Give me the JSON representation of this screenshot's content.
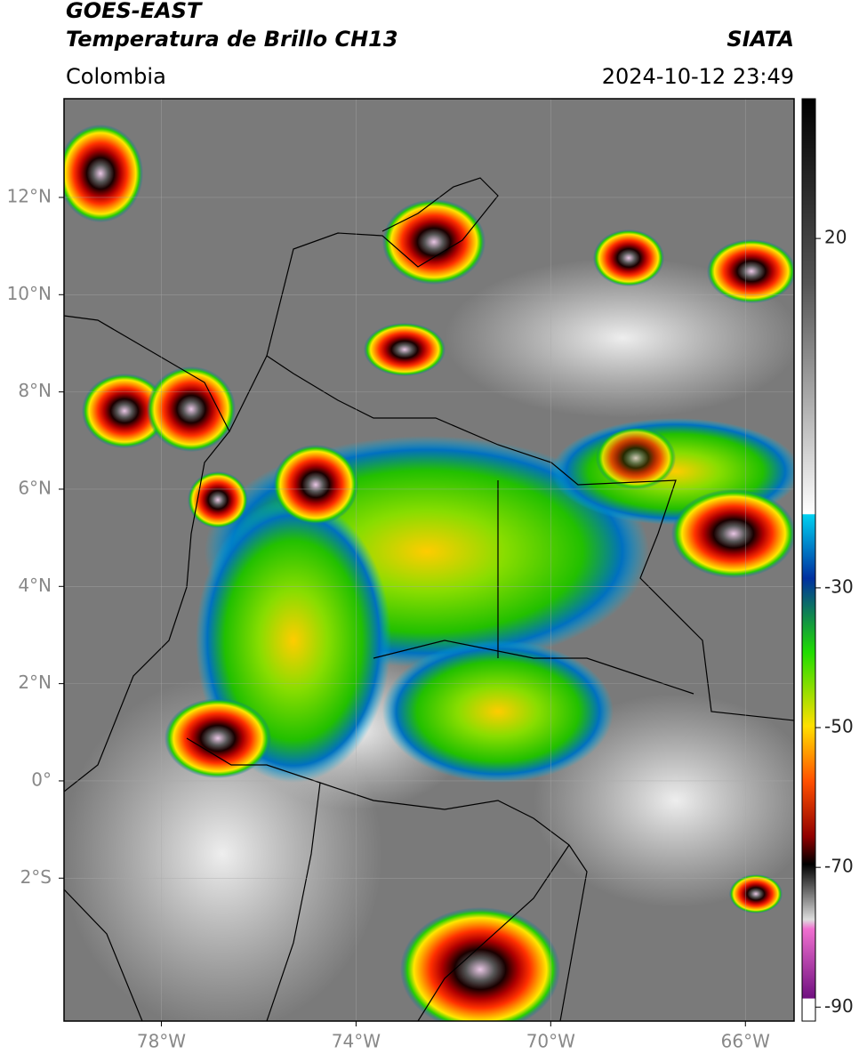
{
  "header": {
    "title": "GOES-EAST",
    "subtitle": "Temperatura de Brillo CH13",
    "source": "SIATA",
    "region": "Colombia",
    "timestamp": "2024-10-12 23:49"
  },
  "map": {
    "lon_range": [
      -80,
      -65
    ],
    "lat_range": [
      -4.94,
      14.03
    ],
    "lon_ticks": [
      {
        "value": -78,
        "label": "78°W"
      },
      {
        "value": -74,
        "label": "74°W"
      },
      {
        "value": -70,
        "label": "70°W"
      },
      {
        "value": -66,
        "label": "66°W"
      }
    ],
    "lat_ticks": [
      {
        "value": 12,
        "label": "12°N"
      },
      {
        "value": 10,
        "label": "10°N"
      },
      {
        "value": 8,
        "label": "8°N"
      },
      {
        "value": 6,
        "label": "6°N"
      },
      {
        "value": 4,
        "label": "4°N"
      },
      {
        "value": 2,
        "label": "2°N"
      },
      {
        "value": 0,
        "label": "0°"
      },
      {
        "value": -2,
        "label": "2°S"
      }
    ],
    "grid": true
  },
  "colorbar": {
    "range": [
      -92,
      40
    ],
    "ticks": [
      20,
      -30,
      -50,
      -70,
      -90
    ]
  }
}
